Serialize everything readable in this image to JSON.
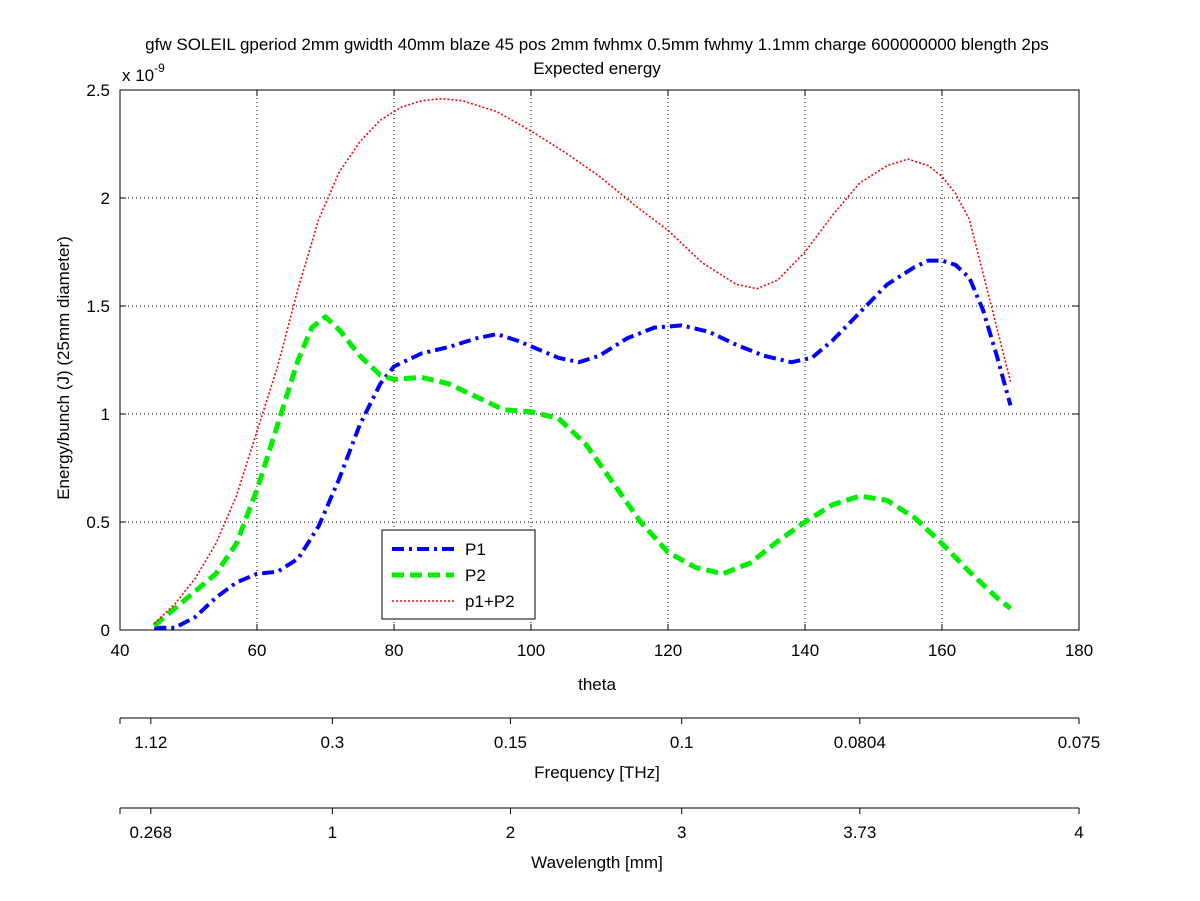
{
  "chart_data": {
    "type": "line",
    "title": "gfw SOLEIL gperiod 2mm gwidth 40mm blaze 45 pos 2mm fwhmx 0.5mm fwhmy 1.1mm charge 600000000 blength 2ps",
    "subtitle": "Expected energy",
    "xlabel": "theta",
    "ylabel": "Energy/bunch (J) (25mm diameter)",
    "y_multiplier": "x 10",
    "y_multiplier_exponent": "-9",
    "xlim": [
      40,
      180
    ],
    "ylim": [
      0,
      2.5
    ],
    "x_ticks": [
      "40",
      "60",
      "80",
      "100",
      "120",
      "140",
      "160",
      "180"
    ],
    "y_ticks": [
      "0",
      "0.5",
      "1",
      "1.5",
      "2",
      "2.5"
    ],
    "grid": true,
    "legend_position": "bottom-left",
    "series": [
      {
        "name": "P1",
        "color": "#0000ff",
        "style": "dashdot",
        "x": [
          45,
          48,
          51,
          54,
          57,
          60,
          63,
          66,
          69,
          72,
          75,
          78,
          80,
          84,
          88,
          92,
          95,
          98,
          101,
          104,
          107,
          110,
          114,
          118,
          122,
          126,
          130,
          134,
          138,
          141,
          144,
          148,
          152,
          156,
          158,
          160,
          162,
          164,
          166,
          168,
          170
        ],
        "values": [
          0.01,
          0.01,
          0.06,
          0.15,
          0.22,
          0.26,
          0.27,
          0.33,
          0.48,
          0.7,
          0.95,
          1.14,
          1.22,
          1.28,
          1.31,
          1.35,
          1.37,
          1.34,
          1.3,
          1.26,
          1.24,
          1.27,
          1.35,
          1.4,
          1.41,
          1.38,
          1.32,
          1.27,
          1.24,
          1.26,
          1.34,
          1.47,
          1.6,
          1.68,
          1.71,
          1.71,
          1.69,
          1.63,
          1.48,
          1.27,
          1.04
        ]
      },
      {
        "name": "P2",
        "color": "#00ee00",
        "style": "dashed",
        "x": [
          45,
          48,
          51,
          54,
          57,
          60,
          63,
          66,
          68,
          70,
          72,
          75,
          78,
          80,
          84,
          88,
          92,
          96,
          100,
          104,
          108,
          112,
          116,
          120,
          124,
          128,
          132,
          136,
          140,
          144,
          148,
          152,
          156,
          160,
          164,
          168,
          170
        ],
        "values": [
          0.02,
          0.1,
          0.18,
          0.26,
          0.4,
          0.65,
          0.95,
          1.25,
          1.4,
          1.45,
          1.39,
          1.27,
          1.18,
          1.16,
          1.17,
          1.14,
          1.08,
          1.02,
          1.01,
          0.98,
          0.86,
          0.68,
          0.5,
          0.36,
          0.29,
          0.26,
          0.31,
          0.41,
          0.5,
          0.58,
          0.62,
          0.6,
          0.52,
          0.4,
          0.27,
          0.15,
          0.1
        ]
      },
      {
        "name": "p1+P2",
        "color": "#ff0000",
        "style": "dotted",
        "x": [
          45,
          48,
          51,
          54,
          57,
          60,
          63,
          66,
          69,
          72,
          75,
          78,
          81,
          84,
          87,
          90,
          95,
          100,
          105,
          110,
          115,
          120,
          125,
          130,
          133,
          136,
          140,
          144,
          148,
          152,
          155,
          158,
          160,
          162,
          164,
          166,
          168,
          170
        ],
        "values": [
          0.03,
          0.12,
          0.24,
          0.4,
          0.62,
          0.92,
          1.22,
          1.58,
          1.9,
          2.12,
          2.26,
          2.36,
          2.42,
          2.45,
          2.46,
          2.45,
          2.4,
          2.31,
          2.21,
          2.1,
          1.97,
          1.85,
          1.7,
          1.6,
          1.58,
          1.62,
          1.75,
          1.92,
          2.07,
          2.15,
          2.18,
          2.15,
          2.1,
          2.02,
          1.9,
          1.65,
          1.4,
          1.15
        ]
      }
    ],
    "secondary_axes": [
      {
        "label": "Frequency [THz]",
        "tick_labels": [
          "1.12",
          "0.3",
          "0.15",
          "0.1",
          "0.0804",
          "0.075"
        ],
        "tick_theta": [
          44.5,
          71,
          97,
          122,
          148,
          180
        ]
      },
      {
        "label": "Wavelength [mm]",
        "tick_labels": [
          "0.268",
          "1",
          "2",
          "3",
          "3.73",
          "4"
        ],
        "tick_theta": [
          44.5,
          71,
          97,
          122,
          148,
          180
        ]
      }
    ]
  }
}
